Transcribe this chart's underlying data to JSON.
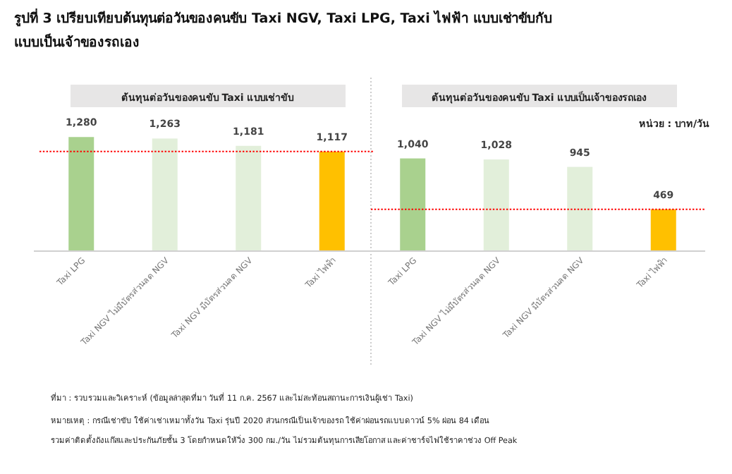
{
  "chart_data": [
    {
      "type": "bar",
      "title": "รูปที่ 3 เปรียบเทียบต้นทุนต่อวันของคนขับ Taxi NGV, Taxi LPG, Taxi ไฟฟ้า แบบเช่าขับกับ\nแบบเป็นเจ้าของรถเอง",
      "subtitle": "ต้นทุนต่อวันของคนขับ Taxi แบบเช่าขับ",
      "categories": [
        "Taxi LPG",
        "Taxi NGV ไม่มีบัตรส่วนลด NGV",
        "Taxi NGV มีบัตรส่วนลด NGV",
        "Taxi ไฟฟ้า"
      ],
      "values": [
        1280,
        1263,
        1181,
        1117
      ],
      "colors": [
        "#a9d18e",
        "#e2efda",
        "#e2efda",
        "#ffc000"
      ],
      "value_labels": [
        "1,280",
        "1,263",
        "1,181",
        "1,117"
      ],
      "ref_lines": [
        {
          "axis": "y",
          "value": 1117,
          "color": "#ff0000",
          "line_style": "dotted"
        }
      ]
    },
    {
      "type": "bar",
      "subtitle": "ต้นทุนต่อวันของคนขับ Taxi แบบเป็นเจ้าของรถเอง",
      "categories": [
        "Taxi LPG",
        "Taxi NGV ไม่มีบัตรส่วนลด NGV",
        "Taxi NGV มีบัตรส่วนลด NGV",
        "Taxi ไฟฟ้า"
      ],
      "values": [
        1040,
        1028,
        945,
        469
      ],
      "colors": [
        "#a9d18e",
        "#e2efda",
        "#e2efda",
        "#ffc000"
      ],
      "value_labels": [
        "1,040",
        "1,028",
        "945",
        "469"
      ],
      "ref_lines": [
        {
          "axis": "y",
          "value": 469,
          "color": "#ff0000",
          "line_style": "dotted"
        }
      ],
      "annotations": [
        "หน่วย : บาท/วัน",
        "ที่มา : รวบรวมและวิเคราะห์ (ข้อมูลล่าสุดที่มา วันที่ 11 ก.ค. 2567 และไม่สะท้อนสถานะการเงินผู้เช่า Taxi)",
        "หมายเหตุ : กรณีเช่าขับ ใช้ค่าเช่าเหมาทั้งวัน Taxi รุ่นปี 2020 ส่วนกรณีเป็นเจ้าของรถ ใช้ค่าผ่อนรถแบบดาวน์ 5% ผ่อน 84 เดือน",
        "รวมค่าติดตั้งถังแก๊สและประกันภัยชั้น 3 โดยกำหนดให้วิ่ง 300 กม./วัน ไม่รวมต้นทุนการเสียโอกาส และค่าชาร์จไฟใช้ราคาช่วง Off Peak"
      ]
    }
  ]
}
